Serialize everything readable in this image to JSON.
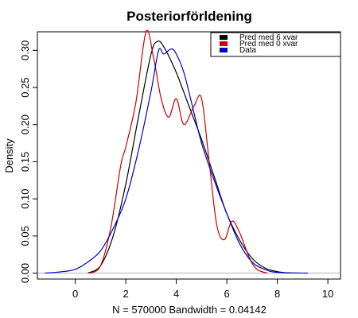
{
  "chart_data": {
    "type": "line",
    "title": "Posteriorförldening",
    "xlabel": "N = 570000   Bandwidth = 0.04142",
    "ylabel": "Density",
    "xlim": [
      -1.5,
      10.5
    ],
    "ylim": [
      -0.008,
      0.325
    ],
    "x_ticks": [
      0,
      2,
      4,
      6,
      8,
      10
    ],
    "x_tick_labels": [
      "0",
      "2",
      "4",
      "6",
      "8",
      "10"
    ],
    "y_ticks": [
      0,
      0.05,
      0.1,
      0.15,
      0.2,
      0.25,
      0.3
    ],
    "y_tick_labels": [
      "0.00",
      "0.05",
      "0.10",
      "0.15",
      "0.20",
      "0.25",
      "0.30"
    ],
    "baseline": 0,
    "legend_position": "top-right",
    "series": [
      {
        "name": "Pred med 6 xvar",
        "color": "#000000",
        "x": [
          0.5,
          1.0,
          1.5,
          2.0,
          2.5,
          3.0,
          3.25,
          3.5,
          4.0,
          4.5,
          5.0,
          5.5,
          6.0,
          6.5,
          7.0,
          7.5,
          8.0,
          8.5
        ],
        "y": [
          0.0,
          0.01,
          0.05,
          0.12,
          0.21,
          0.295,
          0.312,
          0.305,
          0.27,
          0.225,
          0.18,
          0.13,
          0.08,
          0.045,
          0.02,
          0.007,
          0.002,
          0.0
        ]
      },
      {
        "name": "Pred med 0 xvar",
        "color": "#cc0000",
        "x": [
          0.6,
          1.0,
          1.4,
          1.8,
          2.0,
          2.4,
          2.8,
          3.1,
          3.4,
          3.7,
          4.0,
          4.3,
          4.7,
          5.0,
          5.3,
          5.6,
          5.9,
          6.2,
          6.5,
          6.9,
          7.2,
          7.6
        ],
        "y": [
          0.0,
          0.01,
          0.06,
          0.145,
          0.17,
          0.23,
          0.325,
          0.29,
          0.235,
          0.21,
          0.235,
          0.2,
          0.225,
          0.235,
          0.15,
          0.065,
          0.045,
          0.07,
          0.055,
          0.02,
          0.005,
          0.0
        ]
      },
      {
        "name": "Data",
        "color": "#0000cc",
        "x": [
          -1.2,
          -0.5,
          0.0,
          0.5,
          1.0,
          1.5,
          2.0,
          2.5,
          3.0,
          3.3,
          3.5,
          3.8,
          4.0,
          4.3,
          4.6,
          5.0,
          5.5,
          6.0,
          6.5,
          7.0,
          7.5,
          8.0,
          9.2
        ],
        "y": [
          0.0,
          0.002,
          0.005,
          0.015,
          0.03,
          0.06,
          0.1,
          0.165,
          0.245,
          0.3,
          0.295,
          0.302,
          0.295,
          0.27,
          0.23,
          0.175,
          0.125,
          0.08,
          0.04,
          0.015,
          0.005,
          0.001,
          0.0
        ]
      }
    ]
  }
}
